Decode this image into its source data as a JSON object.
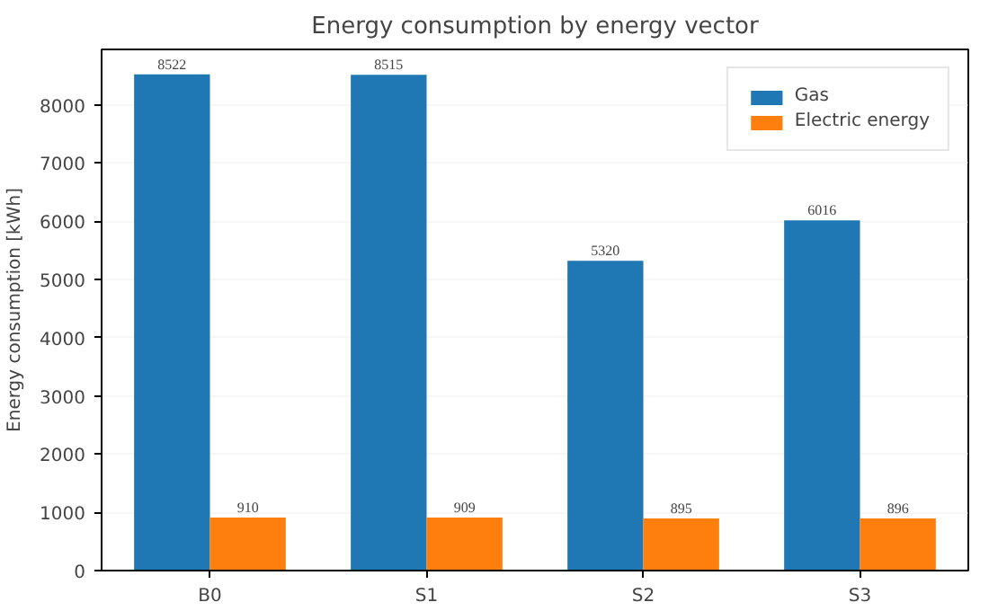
{
  "chart_data": {
    "type": "bar",
    "title": "Energy consumption by energy vector",
    "ylabel": "Energy consumption [kWh]",
    "categories": [
      "B0",
      "S1",
      "S2",
      "S3"
    ],
    "series": [
      {
        "name": "Gas",
        "color": "#1f77b4",
        "values": [
          8522,
          8515,
          5320,
          6016
        ]
      },
      {
        "name": "Electric energy",
        "color": "#ff7f0e",
        "values": [
          910,
          909,
          895,
          896
        ]
      }
    ],
    "ylim": [
      0,
      8950
    ],
    "yticks": [
      0,
      1000,
      2000,
      3000,
      4000,
      5000,
      6000,
      7000,
      8000
    ],
    "grid": "y",
    "legend": "top right",
    "data_labels": true
  }
}
